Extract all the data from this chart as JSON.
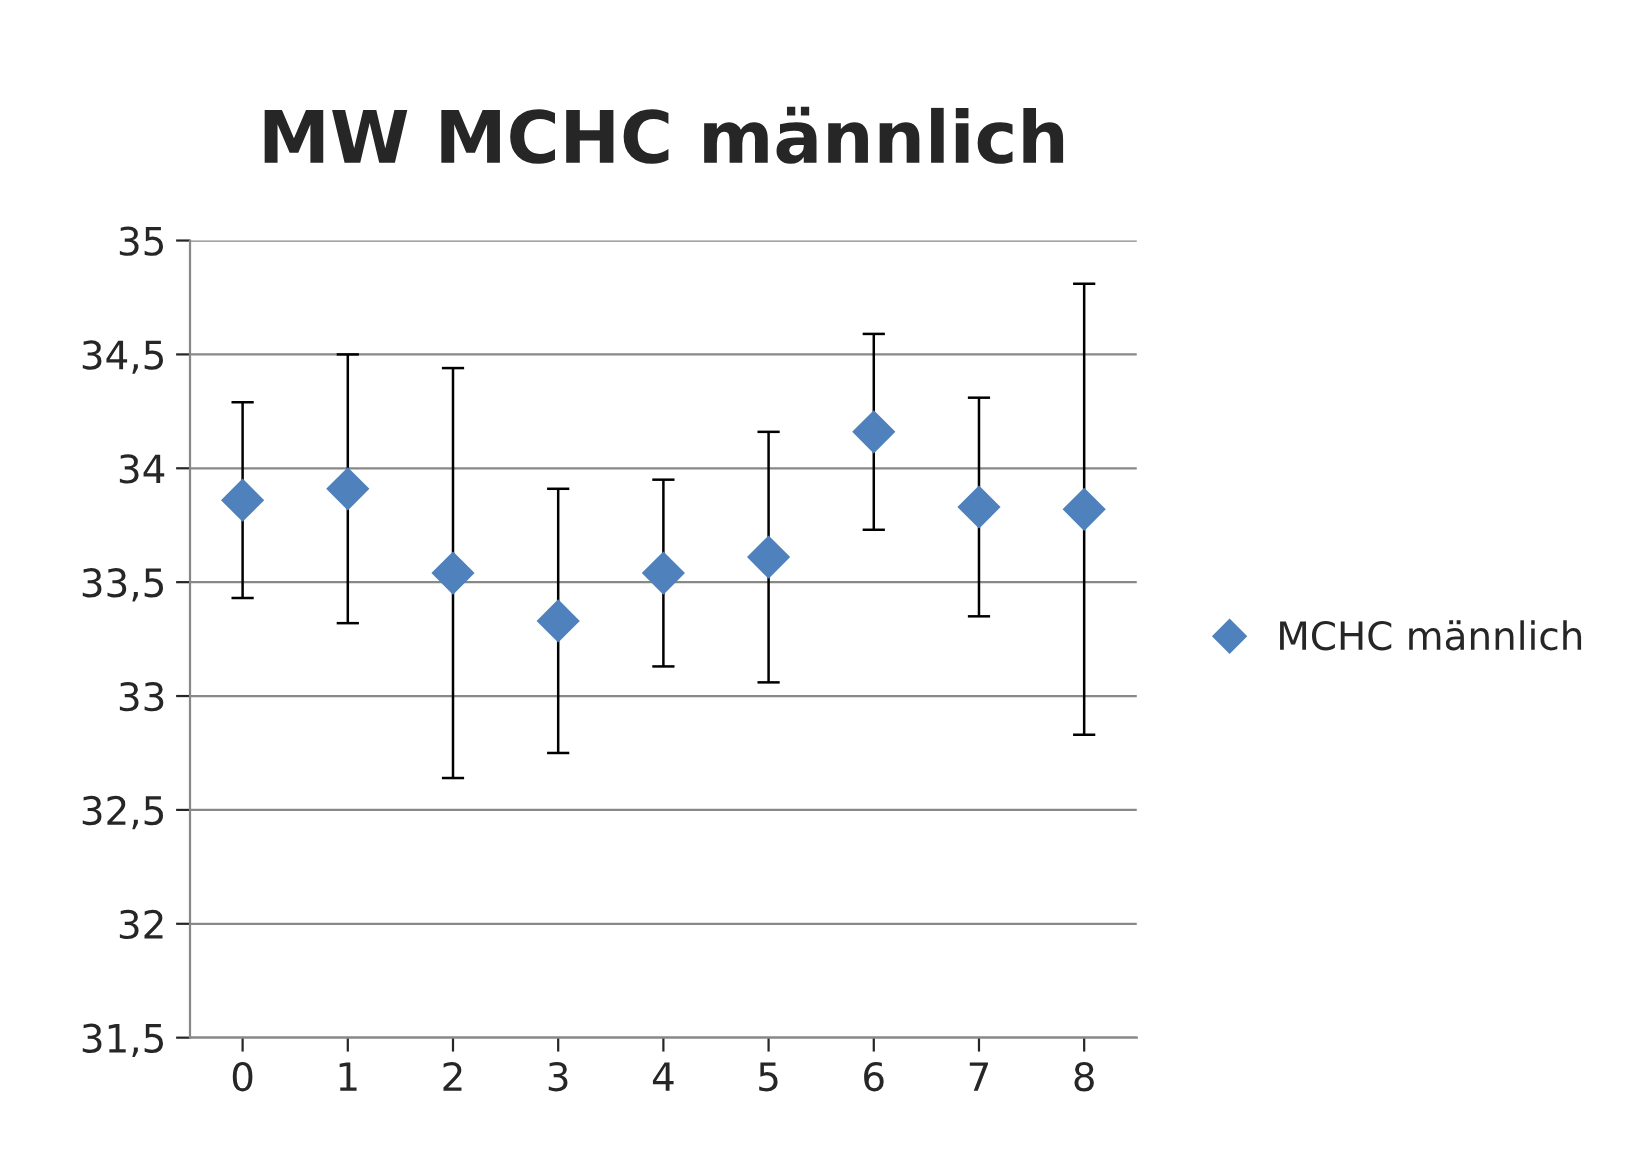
{
  "chart_data": {
    "type": "scatter",
    "title": "MW MCHC männlich",
    "categories": [
      "0",
      "1",
      "2",
      "3",
      "4",
      "5",
      "6",
      "7",
      "8"
    ],
    "series": [
      {
        "name": "MCHC männlich",
        "color": "#4f81bd",
        "values": [
          33.86,
          33.91,
          33.54,
          33.33,
          33.54,
          33.61,
          34.16,
          33.83,
          33.82
        ],
        "errors": [
          0.43,
          0.59,
          0.9,
          0.58,
          0.41,
          0.55,
          0.43,
          0.48,
          0.99
        ]
      }
    ],
    "ylim": [
      31.5,
      35
    ],
    "yticks": [
      {
        "value": 31.5,
        "label": "31,5"
      },
      32,
      {
        "value": 32.5,
        "label": "32,5"
      },
      33,
      {
        "value": 33.5,
        "label": "33,5"
      },
      34,
      {
        "value": 34.5,
        "label": "34,5"
      },
      35
    ],
    "grid": "y",
    "legend": "right",
    "marker": "diamond"
  }
}
